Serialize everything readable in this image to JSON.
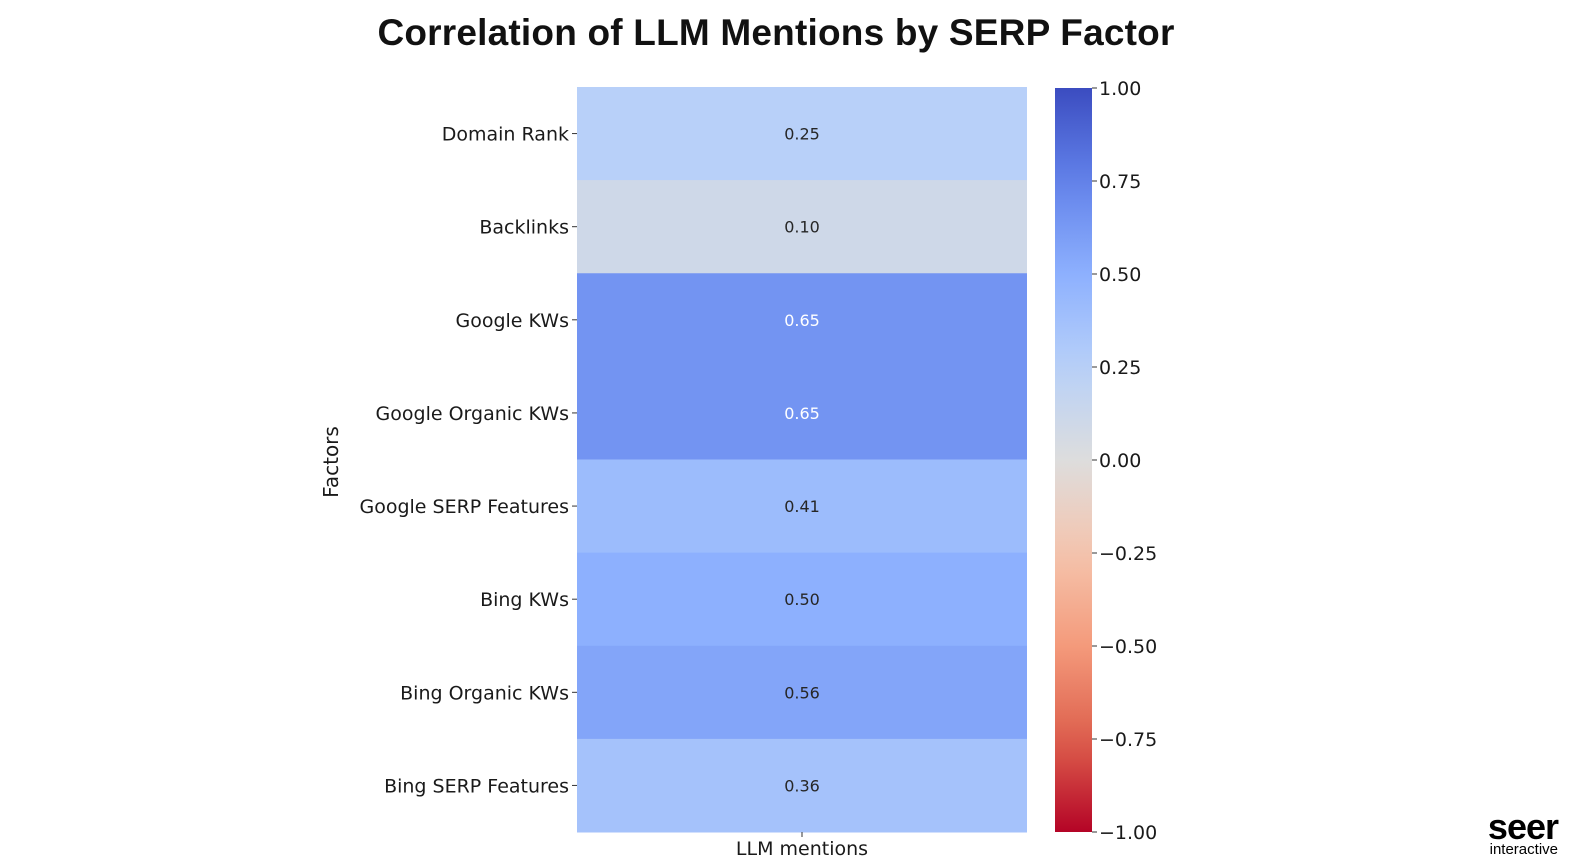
{
  "chart_data": {
    "type": "heatmap",
    "title": "Correlation of LLM Mentions by SERP Factor",
    "ylabel": "Factors",
    "xlabel": "",
    "columns": [
      "LLM mentions"
    ],
    "rows": [
      "Domain Rank",
      "Backlinks",
      "Google KWs",
      "Google Organic KWs",
      "Google SERP Features",
      "Bing KWs",
      "Bing Organic KWs",
      "Bing SERP Features"
    ],
    "values": [
      0.25,
      0.1,
      0.65,
      0.65,
      0.41,
      0.5,
      0.56,
      0.36
    ],
    "value_labels": [
      "0.25",
      "0.10",
      "0.65",
      "0.65",
      "0.41",
      "0.50",
      "0.56",
      "0.36"
    ],
    "colorbar": {
      "colormap": "coolwarm",
      "range": [
        -1.0,
        1.0
      ],
      "ticks": [
        1.0,
        0.75,
        0.5,
        0.25,
        0.0,
        -0.25,
        -0.5,
        -0.75,
        -1.0
      ],
      "tick_labels": [
        "1.00",
        "0.75",
        "0.50",
        "0.25",
        "0.00",
        "−0.25",
        "−0.50",
        "−0.75",
        "−1.00"
      ],
      "position": "right"
    }
  },
  "logo": {
    "word": "seer",
    "sub": "interactive"
  }
}
